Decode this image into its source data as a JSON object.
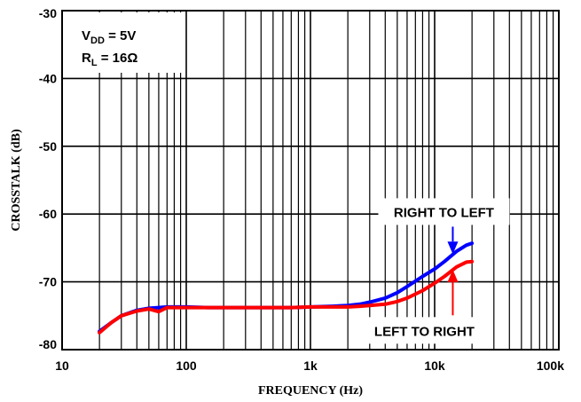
{
  "chart_data": {
    "type": "line",
    "xscale": "log",
    "xlim": [
      10,
      100000
    ],
    "ylim": [
      -80,
      -30
    ],
    "grid": true,
    "xlabel": "FREQUENCY (Hz)",
    "ylabel": "CROSSTALK (dB)",
    "x_ticks": [
      {
        "value": 10,
        "label": "10"
      },
      {
        "value": 100,
        "label": "100"
      },
      {
        "value": 1000,
        "label": "1k"
      },
      {
        "value": 10000,
        "label": "10k"
      },
      {
        "value": 100000,
        "label": "100k"
      }
    ],
    "y_ticks": [
      {
        "value": -30,
        "label": "-30"
      },
      {
        "value": -40,
        "label": "-40"
      },
      {
        "value": -50,
        "label": "-50"
      },
      {
        "value": -60,
        "label": "-60"
      },
      {
        "value": -70,
        "label": "-70"
      },
      {
        "value": -80,
        "label": "-80"
      }
    ],
    "conditions": {
      "vdd_main": "V",
      "vdd_sub": "DD",
      "vdd_value": " = 5V",
      "rl_main": "R",
      "rl_sub": "L",
      "rl_value": " = 16Ω"
    },
    "series": [
      {
        "name": "RIGHT TO LEFT",
        "color": "#0000ff",
        "x": [
          20,
          25,
          30,
          40,
          50,
          60,
          70,
          100,
          150,
          200,
          300,
          500,
          700,
          1000,
          1500,
          2000,
          2500,
          3000,
          4000,
          5000,
          6000,
          8000,
          10000,
          12000,
          15000,
          18000,
          20000
        ],
        "y": [
          -77.3,
          -76,
          -75,
          -74.2,
          -73.9,
          -73.8,
          -73.7,
          -73.7,
          -73.8,
          -73.8,
          -73.8,
          -73.8,
          -73.8,
          -73.7,
          -73.6,
          -73.5,
          -73.3,
          -73.0,
          -72.4,
          -71.6,
          -70.7,
          -69.2,
          -68.1,
          -67.0,
          -65.5,
          -64.6,
          -64.3
        ]
      },
      {
        "name": "LEFT TO RIGHT",
        "color": "#ff0000",
        "x": [
          20,
          25,
          30,
          40,
          50,
          60,
          70,
          100,
          150,
          200,
          300,
          500,
          700,
          1000,
          1500,
          2000,
          2500,
          3000,
          4000,
          5000,
          6000,
          8000,
          10000,
          12000,
          15000,
          18000,
          20000
        ],
        "y": [
          -77.5,
          -76,
          -75,
          -74.3,
          -74.0,
          -74.4,
          -73.8,
          -73.8,
          -73.8,
          -73.8,
          -73.8,
          -73.8,
          -73.8,
          -73.7,
          -73.7,
          -73.7,
          -73.6,
          -73.5,
          -73.3,
          -72.9,
          -72.4,
          -71.3,
          -70.2,
          -69.2,
          -67.8,
          -67.1,
          -67.0
        ]
      }
    ],
    "annotations": [
      {
        "text": "RIGHT TO LEFT",
        "arrow_to_x": 14000,
        "arrow_to_y": -65.9,
        "arrow_color": "#0000ff",
        "side": "above"
      },
      {
        "text": "LEFT TO RIGHT",
        "arrow_to_x": 14000,
        "arrow_to_y": -68.2,
        "arrow_color": "#ff0000",
        "side": "below"
      }
    ]
  }
}
